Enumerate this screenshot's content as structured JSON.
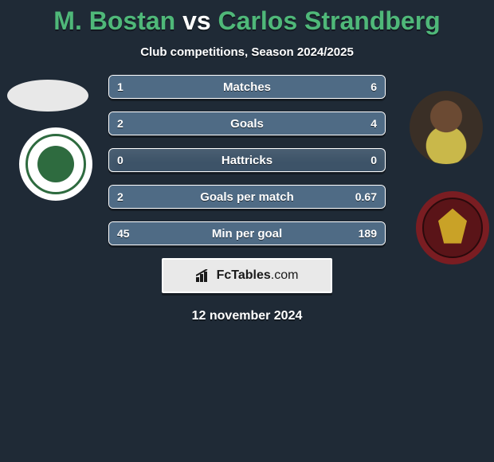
{
  "title_color": "#4fb879",
  "player1": "M. Bostan",
  "vs": "vs",
  "player2": "Carlos Strandberg",
  "subtitle": "Club competitions, Season 2024/2025",
  "brand": {
    "name": "FcTables",
    "domain": ".com"
  },
  "date": "12 november 2024",
  "bar_left_fill": "#4f6b85",
  "bar_right_fill": "#4f6b85",
  "bar_base": "#3d5368",
  "rows": [
    {
      "label": "Matches",
      "left": "1",
      "right": "6",
      "lw": 14,
      "rw": 86
    },
    {
      "label": "Goals",
      "left": "2",
      "right": "4",
      "lw": 33,
      "rw": 67
    },
    {
      "label": "Hattricks",
      "left": "0",
      "right": "0",
      "lw": 0,
      "rw": 0
    },
    {
      "label": "Goals per match",
      "left": "2",
      "right": "0.67",
      "lw": 75,
      "rw": 25
    },
    {
      "label": "Min per goal",
      "left": "45",
      "right": "189",
      "lw": 19,
      "rw": 81
    }
  ]
}
